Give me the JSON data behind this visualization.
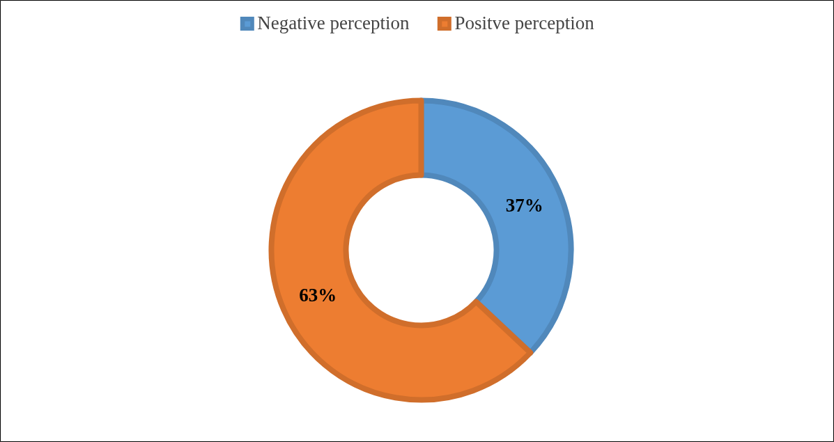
{
  "chart_data": {
    "type": "donut",
    "categories": [
      "Negative perception",
      "Positve perception"
    ],
    "values": [
      37,
      63
    ],
    "colors": [
      "#5b9bd5",
      "#ed7d31"
    ],
    "value_labels": [
      "37%",
      "63%"
    ],
    "legend": "top"
  }
}
